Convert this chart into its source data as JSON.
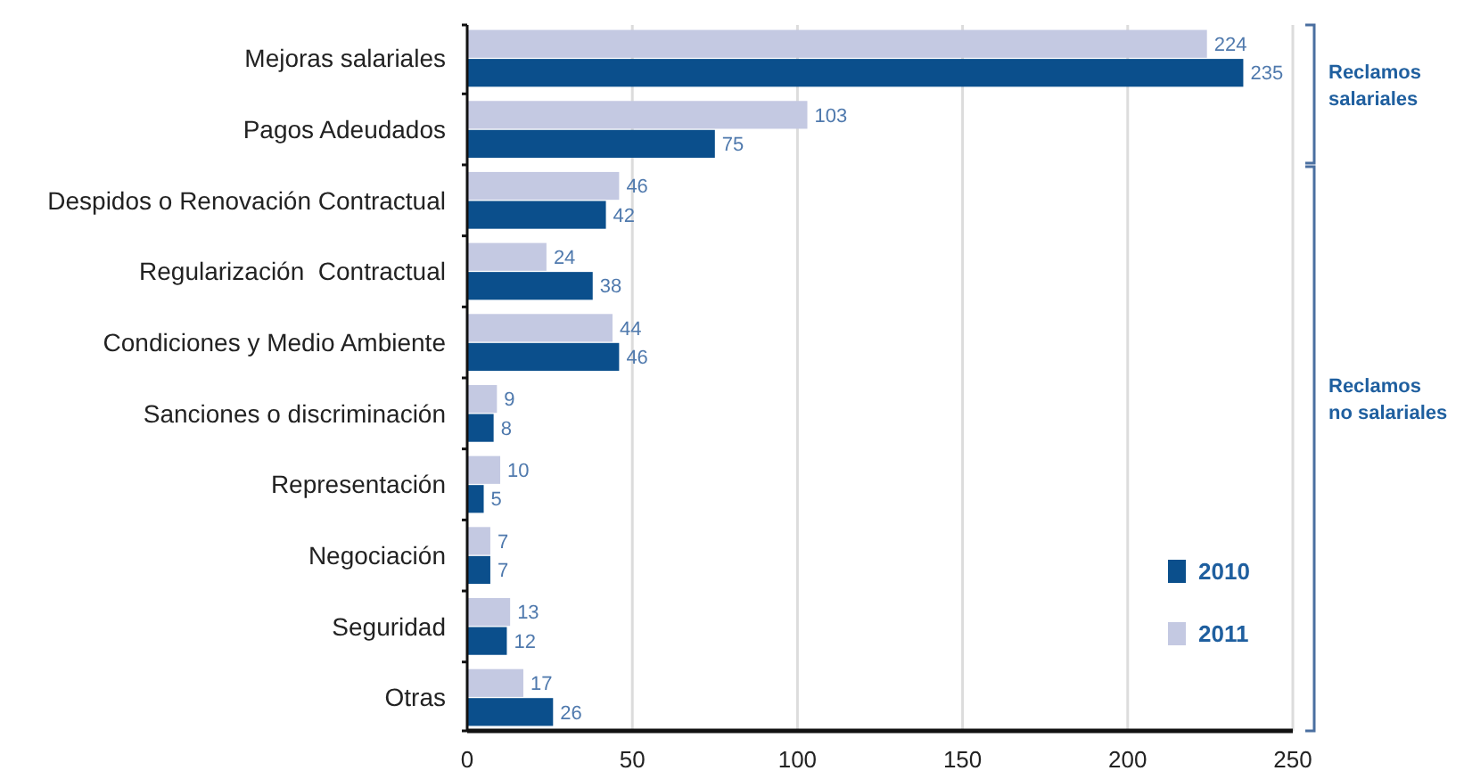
{
  "chart_data": {
    "type": "bar",
    "orientation": "horizontal",
    "categories": [
      "Mejoras salariales",
      "Pagos Adeudados",
      "Despidos o Renovación Contractual",
      "Regularización  Contractual",
      "Condiciones y Medio Ambiente",
      "Sanciones o discriminación",
      "Representación",
      "Negociación",
      "Seguridad",
      "Otras"
    ],
    "series": [
      {
        "name": "2010",
        "color": "#0b4f8c",
        "values": [
          235,
          75,
          42,
          38,
          46,
          8,
          5,
          7,
          12,
          26
        ]
      },
      {
        "name": "2011",
        "color": "#c4c9e2",
        "values": [
          224,
          103,
          46,
          24,
          44,
          9,
          10,
          7,
          13,
          17
        ]
      }
    ],
    "xlim": [
      0,
      250
    ],
    "xticks": [
      0,
      50,
      100,
      150,
      200,
      250
    ],
    "grid": "x",
    "legend": "bottom right",
    "data_labels": true,
    "annotations": [
      "Reclamos salariales",
      "Reclamos no salariales"
    ]
  }
}
